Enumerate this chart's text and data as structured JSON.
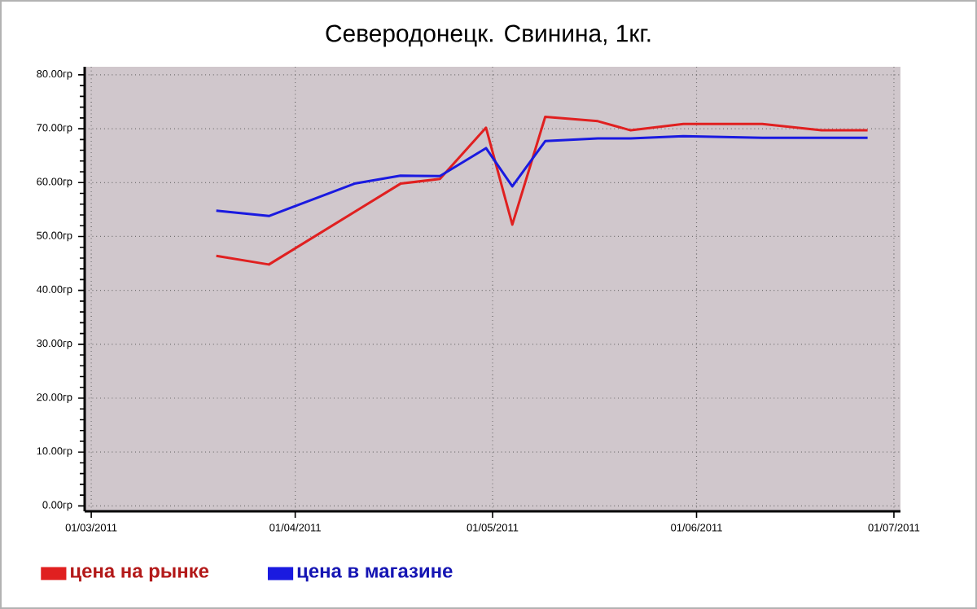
{
  "chart_data": {
    "type": "line",
    "title": "Северодонецк. Свинина, 1кг.",
    "xlim": [
      "2011-02-28",
      "2011-07-02"
    ],
    "xticks": [
      {
        "value": "2011-03-01",
        "label": "01/03/2011"
      },
      {
        "value": "2011-04-01",
        "label": "01/04/2011"
      },
      {
        "value": "2011-05-01",
        "label": "01/05/2011"
      },
      {
        "value": "2011-06-01",
        "label": "01/06/2011"
      },
      {
        "value": "2011-07-01",
        "label": "01/07/2011"
      }
    ],
    "ylim": [
      -1,
      81.5
    ],
    "yticks": [
      {
        "value": 0,
        "label": "0.00гр"
      },
      {
        "value": 10,
        "label": "10.00гр"
      },
      {
        "value": 20,
        "label": "20.00гр"
      },
      {
        "value": 30,
        "label": "30.00гр"
      },
      {
        "value": 40,
        "label": "40.00гр"
      },
      {
        "value": 50,
        "label": "50.00гр"
      },
      {
        "value": 60,
        "label": "60.00гр"
      },
      {
        "value": 70,
        "label": "70.00гр"
      },
      {
        "value": 80,
        "label": "80.00гр"
      }
    ],
    "grid": true,
    "legend": "bottom",
    "marker": "none",
    "line_style": "solid",
    "series": [
      {
        "name": "цена на рынке",
        "color": "#e02020",
        "x": [
          "2011-03-20",
          "2011-03-28",
          "2011-04-17",
          "2011-04-23",
          "2011-04-30",
          "2011-05-04",
          "2011-05-09",
          "2011-05-17",
          "2011-05-22",
          "2011-05-30",
          "2011-06-11",
          "2011-06-20",
          "2011-06-27"
        ],
        "values": [
          46.4,
          44.8,
          59.8,
          60.7,
          70.2,
          52.2,
          72.2,
          71.4,
          69.7,
          70.9,
          70.9,
          69.7,
          69.7
        ]
      },
      {
        "name": "цена в магазине",
        "color": "#1a1ae0",
        "x": [
          "2011-03-20",
          "2011-03-28",
          "2011-04-10",
          "2011-04-17",
          "2011-04-23",
          "2011-04-30",
          "2011-05-04",
          "2011-05-09",
          "2011-05-17",
          "2011-05-22",
          "2011-05-30",
          "2011-06-11",
          "2011-06-20",
          "2011-06-27"
        ],
        "values": [
          54.8,
          53.8,
          59.8,
          61.3,
          61.2,
          66.4,
          59.3,
          67.7,
          68.2,
          68.2,
          68.6,
          68.3,
          68.3,
          68.3
        ]
      }
    ]
  }
}
